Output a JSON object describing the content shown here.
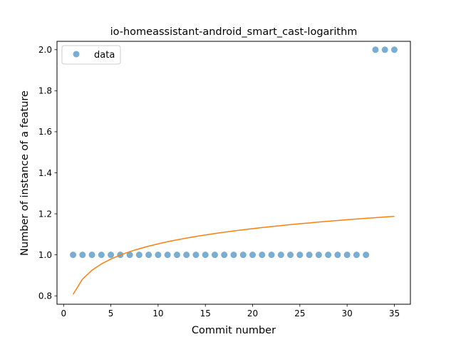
{
  "chart_data": {
    "type": "scatter",
    "title": "io-homeassistant-android_smart_cast-logarithm",
    "xlabel": "Commit number",
    "ylabel": "Number of instance of a feature",
    "xlim": [
      -0.7,
      36.7
    ],
    "ylim": [
      0.7591,
      2.0409
    ],
    "xticks": [
      0,
      5,
      10,
      15,
      20,
      25,
      30,
      35
    ],
    "yticks": [
      0.8,
      1.0,
      1.2,
      1.4,
      1.6,
      1.8,
      2.0
    ],
    "ytick_labels": [
      "0.8",
      "1.0",
      "1.2",
      "1.4",
      "1.6",
      "1.8",
      "2.0"
    ],
    "legend_position": "upper-left",
    "colors": {
      "data": "#1f77b4",
      "fit": "#ff7f0e"
    },
    "series": [
      {
        "name": "data",
        "kind": "scatter",
        "x": [
          1,
          2,
          3,
          4,
          5,
          6,
          7,
          8,
          9,
          10,
          11,
          12,
          13,
          14,
          15,
          16,
          17,
          18,
          19,
          20,
          21,
          22,
          23,
          24,
          25,
          26,
          27,
          28,
          29,
          30,
          31,
          32,
          33,
          34,
          35
        ],
        "y": [
          1,
          1,
          1,
          1,
          1,
          1,
          1,
          1,
          1,
          1,
          1,
          1,
          1,
          1,
          1,
          1,
          1,
          1,
          1,
          1,
          1,
          1,
          1,
          1,
          1,
          1,
          1,
          1,
          1,
          1,
          1,
          1,
          2,
          2,
          2
        ]
      },
      {
        "kind": "line",
        "x": [
          1,
          2,
          3,
          4,
          5,
          6,
          7,
          8,
          9,
          10,
          11,
          12,
          13,
          14,
          15,
          16,
          17,
          18,
          19,
          20,
          21,
          22,
          23,
          24,
          25,
          26,
          27,
          28,
          29,
          30,
          31,
          32,
          33,
          34,
          35
        ],
        "y": [
          0.8074,
          0.8815,
          0.9249,
          0.9556,
          0.9795,
          0.999,
          1.0155,
          1.0297,
          1.0423,
          1.0536,
          1.0638,
          1.0731,
          1.0816,
          1.0896,
          1.097,
          1.1038,
          1.1103,
          1.1164,
          1.1222,
          1.1277,
          1.1329,
          1.1379,
          1.1426,
          1.1472,
          1.1515,
          1.1557,
          1.1598,
          1.1637,
          1.1674,
          1.1711,
          1.1746,
          1.178,
          1.1813,
          1.1845,
          1.1876
        ]
      }
    ]
  }
}
